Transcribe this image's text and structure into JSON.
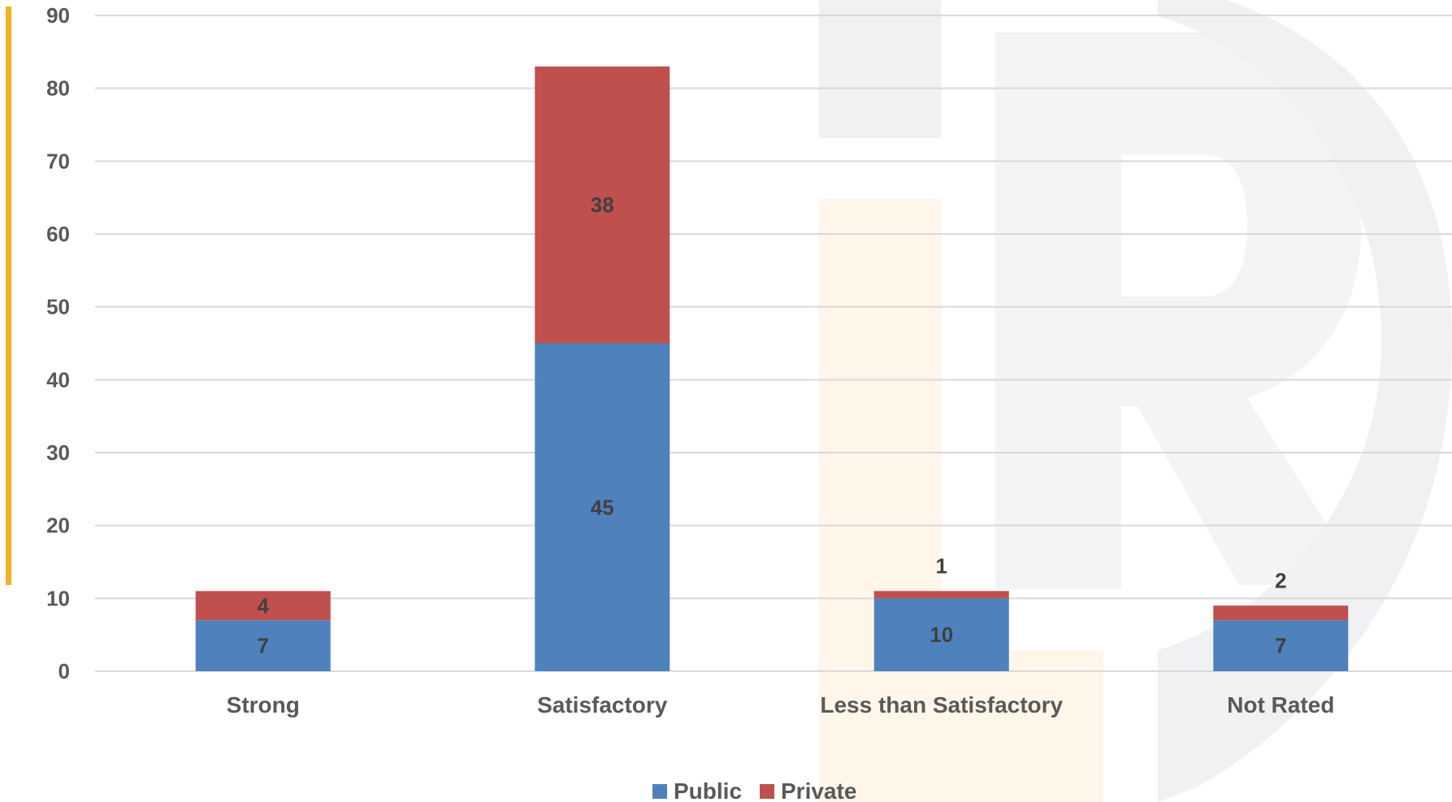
{
  "chart_data": {
    "type": "bar",
    "stacked": true,
    "categories": [
      "Strong",
      "Satisfactory",
      "Less than Satisfactory",
      "Not Rated"
    ],
    "series": [
      {
        "name": "Public",
        "values": [
          7,
          45,
          10,
          7
        ],
        "color": "#4F81BD"
      },
      {
        "name": "Private",
        "values": [
          4,
          38,
          1,
          2
        ],
        "color": "#C0504D"
      }
    ],
    "ylim": [
      0,
      90
    ],
    "yticks": [
      0,
      10,
      20,
      30,
      40,
      50,
      60,
      70,
      80,
      90
    ],
    "grid": true,
    "legend_position": "bottom",
    "title": "",
    "xlabel": "",
    "ylabel": ""
  },
  "colors": {
    "gridline": "#D9D9D9",
    "accent_bar": "#F0B323",
    "watermark_gray": "#F0F1F3",
    "watermark_yellow": "#FEF6E8"
  }
}
